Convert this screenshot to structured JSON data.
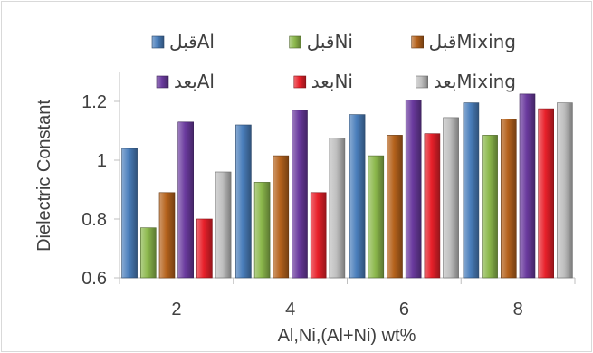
{
  "chart_data": {
    "type": "bar",
    "title": "",
    "xlabel": "Al,Ni,(Al+Ni) wt%",
    "ylabel": "Dielectric Constant",
    "categories": [
      "2",
      "4",
      "6",
      "8"
    ],
    "ylim": [
      0.6,
      1.2
    ],
    "yticks": [
      "0.6",
      "0.8",
      "1",
      "1.2"
    ],
    "grid": false,
    "legend_position": "top",
    "series": [
      {
        "name": "قبلAl",
        "color": "#4a7ebb",
        "values": [
          1.04,
          1.12,
          1.155,
          1.195
        ]
      },
      {
        "name": "قبلNi",
        "color": "#8cb84c",
        "values": [
          0.77,
          0.925,
          1.015,
          1.085
        ]
      },
      {
        "name": "قبلMixing",
        "color": "#b5621c",
        "values": [
          0.89,
          1.015,
          1.085,
          1.14
        ]
      },
      {
        "name": "بعدAl",
        "color": "#6a3a9e",
        "values": [
          1.13,
          1.17,
          1.205,
          1.225
        ]
      },
      {
        "name": "بعدNi",
        "color": "#e8202a",
        "values": [
          0.8,
          0.89,
          1.09,
          1.175
        ]
      },
      {
        "name": "بعدMixing",
        "color": "#bfbfbf",
        "values": [
          0.96,
          1.075,
          1.145,
          1.195
        ]
      }
    ]
  }
}
